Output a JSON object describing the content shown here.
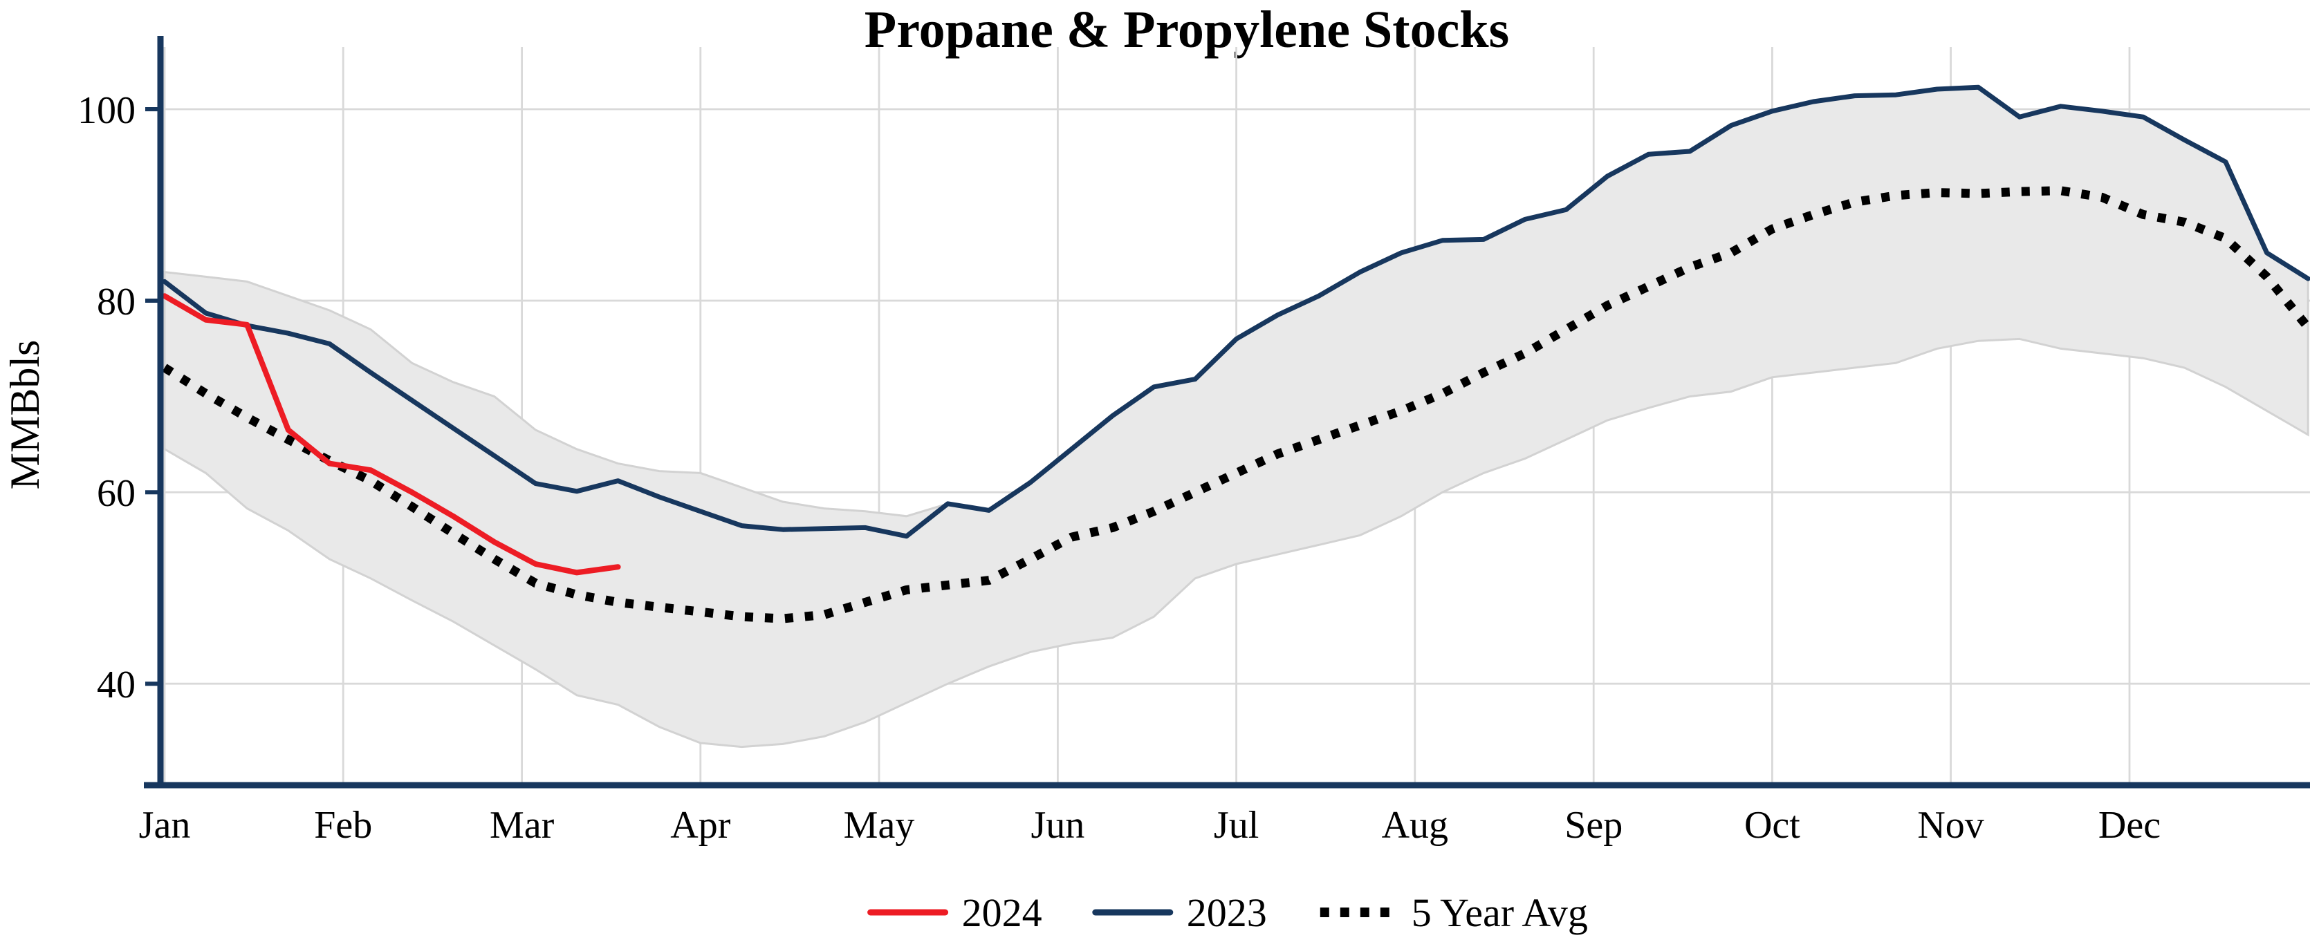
{
  "page": {
    "background": "#ffffff"
  },
  "chart_data": {
    "type": "line",
    "title": "Propane & Propylene Stocks",
    "ylabel": "MMBbls",
    "xlabel": "",
    "x_unit": "weekly",
    "grid": true,
    "legend_position": "bottom-center",
    "axis_color": "#17375e",
    "grid_color": "#d9d9d9",
    "ylim": [
      29.4,
      106.5
    ],
    "y_ticks": [
      40,
      60,
      80,
      100
    ],
    "months": [
      "Jan",
      "Feb",
      "Mar",
      "Apr",
      "May",
      "Jun",
      "Jul",
      "Aug",
      "Sep",
      "Oct",
      "Nov",
      "Dec"
    ],
    "band": {
      "name": "5-year-range",
      "fill": "#e9e9e9",
      "edge": "#d2d2d2",
      "upper": [
        83,
        82.5,
        82,
        80.5,
        79,
        77,
        73.5,
        71.5,
        70,
        66.5,
        64.5,
        63,
        62.2,
        62,
        60.5,
        59,
        58.3,
        58,
        57.5,
        58.8,
        58.2,
        61,
        64.5,
        68,
        71,
        71.8,
        76,
        78.5,
        80.5,
        83,
        85,
        86.3,
        86.4,
        88.5,
        89.5,
        93,
        95.3,
        95.6,
        98.3,
        99.8,
        100.8,
        101.4,
        101.5,
        102.1,
        102.3,
        99.2,
        100.3,
        99.8,
        99.2,
        96.8,
        94.5,
        85,
        82.3
      ],
      "lower": [
        64.5,
        62,
        58.3,
        56,
        53,
        51,
        48.7,
        46.5,
        44,
        41.5,
        38.8,
        37.8,
        35.5,
        33.8,
        33.4,
        33.7,
        34.5,
        36,
        38,
        40,
        41.8,
        43.3,
        44.2,
        44.8,
        47,
        51,
        52.5,
        53.5,
        54.5,
        55.5,
        57.5,
        60,
        62,
        63.5,
        65.5,
        67.5,
        68.8,
        70,
        70.5,
        72,
        72.5,
        73,
        73.5,
        75,
        75.8,
        76,
        75,
        74.5,
        74,
        73,
        71,
        68.5,
        66
      ]
    },
    "series": [
      {
        "name": "2024",
        "color": "#ed1c24",
        "style": "solid",
        "values": [
          80.5,
          78,
          77.5,
          66.5,
          63,
          62.3,
          60,
          57.5,
          54.8,
          52.5,
          51.6,
          52.2
        ]
      },
      {
        "name": "2023",
        "color": "#17375e",
        "style": "solid",
        "values": [
          82,
          78.7,
          77.4,
          76.6,
          75.5,
          72.5,
          69.6,
          66.7,
          63.8,
          60.9,
          60.1,
          61.2,
          59.5,
          58,
          56.5,
          56.1,
          56.2,
          56.3,
          55.4,
          58.8,
          58.1,
          61,
          64.5,
          68,
          71,
          71.8,
          76,
          78.5,
          80.5,
          83,
          85,
          86.3,
          86.4,
          88.5,
          89.5,
          93,
          95.3,
          95.6,
          98.3,
          99.8,
          100.8,
          101.4,
          101.5,
          102.1,
          102.3,
          99.2,
          100.3,
          99.8,
          99.2,
          96.8,
          94.5,
          85,
          82.3
        ]
      },
      {
        "name": "5 Year Avg",
        "color": "#000000",
        "style": "dotted",
        "values": [
          73,
          70.3,
          67.8,
          65.5,
          63.3,
          61.2,
          58.5,
          55.7,
          53,
          50.5,
          49.3,
          48.5,
          48,
          47.5,
          47,
          46.8,
          47.2,
          48.5,
          49.8,
          50.3,
          50.8,
          53,
          55.3,
          56.3,
          58,
          60,
          62,
          64,
          65.5,
          67,
          68.5,
          70.3,
          72.5,
          74.5,
          77,
          79.5,
          81.5,
          83.5,
          85,
          87.5,
          89,
          90.3,
          91,
          91.3,
          91.2,
          91.4,
          91.5,
          90.8,
          89,
          88.2,
          86.5,
          82.5,
          77.2
        ]
      }
    ],
    "legend_items": [
      "2024",
      "2023",
      "5 Year Avg"
    ]
  }
}
